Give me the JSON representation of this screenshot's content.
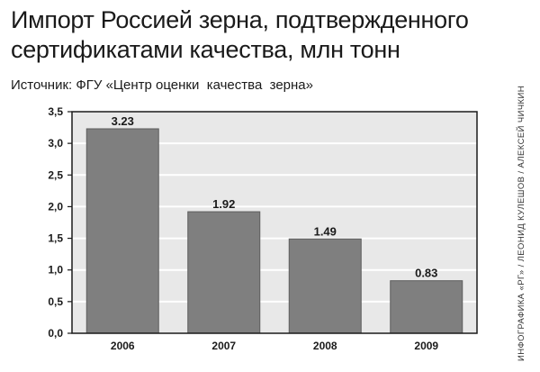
{
  "header": {
    "title": "Импорт Россией зерна, подтвержденного сертификатами качества, млн тонн",
    "source": "Источник: ФГУ «Центр оценки  качества  зерна»",
    "credit": "ИНФОГРАФИКА «РГ» / ЛЕОНИД КУЛЕШОВ / АЛЕКСЕЙ ЧИЧКИН"
  },
  "chart_data": {
    "type": "bar",
    "title": "Импорт Россией зерна, подтвержденного сертификатами качества, млн тонн",
    "xlabel": "",
    "ylabel": "",
    "categories": [
      "2006",
      "2007",
      "2008",
      "2009"
    ],
    "values": [
      3.23,
      1.92,
      1.49,
      0.83
    ],
    "value_labels": [
      "3.23",
      "1.92",
      "1.49",
      "0.83"
    ],
    "ylim": [
      0,
      3.5
    ],
    "yticks": [
      0,
      0.5,
      1.0,
      1.5,
      2.0,
      2.5,
      3.0,
      3.5
    ],
    "ytick_labels": [
      "0,0",
      "0,5",
      "1,0",
      "1,5",
      "2,0",
      "2,5",
      "3,0",
      "3,5"
    ],
    "grid": true,
    "colors": {
      "bar": "#7f7f7f",
      "bar_edge": "#5e5e5e",
      "plot_bg": "#e8e8e8",
      "grid": "#ffffff",
      "frame": "#1a1a1a"
    }
  }
}
